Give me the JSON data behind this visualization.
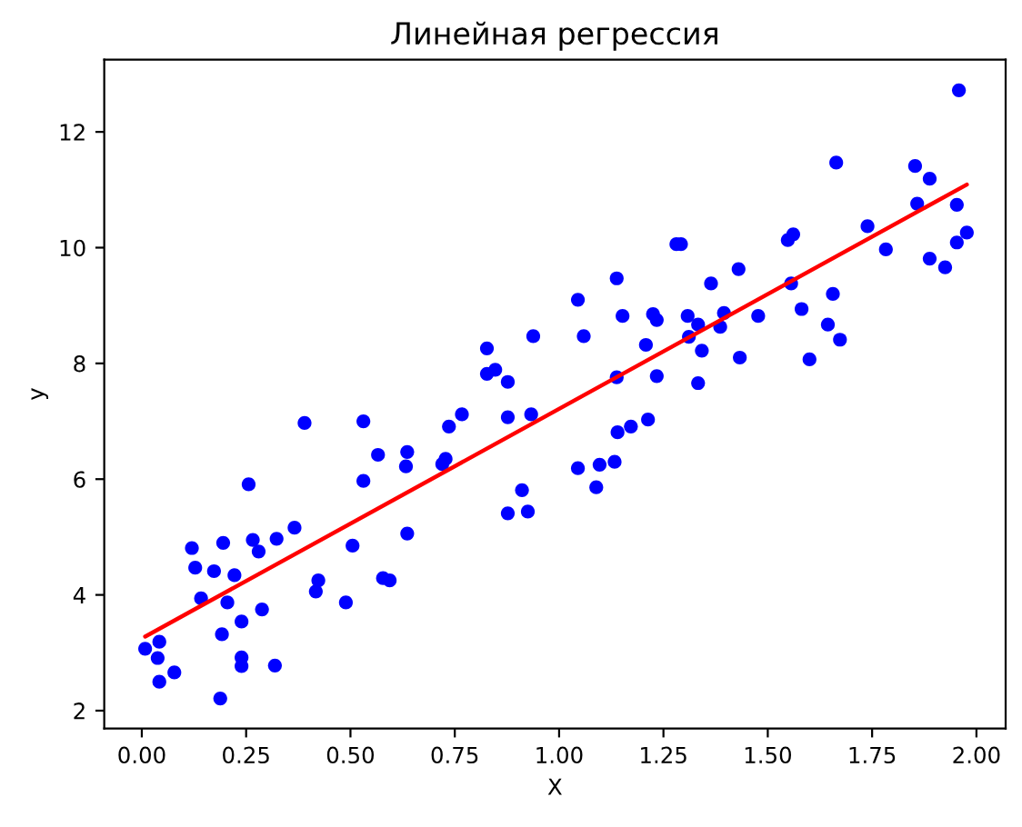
{
  "chart_data": {
    "type": "scatter",
    "title": "Линейная регрессия",
    "xlabel": "X",
    "ylabel": "y",
    "xlim": [
      -0.09,
      2.07
    ],
    "ylim": [
      1.69,
      13.25
    ],
    "xticks": [
      {
        "value": 0,
        "label": "0.00"
      },
      {
        "value": 0.25,
        "label": "0.25"
      },
      {
        "value": 0.5,
        "label": "0.50"
      },
      {
        "value": 0.75,
        "label": "0.75"
      },
      {
        "value": 1,
        "label": "1.00"
      },
      {
        "value": 1.25,
        "label": "1.25"
      },
      {
        "value": 1.5,
        "label": "1.50"
      },
      {
        "value": 1.75,
        "label": "1.75"
      },
      {
        "value": 2,
        "label": "2.00"
      }
    ],
    "yticks": [
      2,
      4,
      6,
      8,
      10,
      12
    ],
    "grid": false,
    "series": [
      {
        "color": "#0000ff",
        "marker": "circle",
        "x": [
          0.008,
          0.042,
          0.038,
          0.042,
          0.078,
          0.12,
          0.128,
          0.142,
          0.173,
          0.195,
          0.205,
          0.192,
          0.188,
          0.222,
          0.239,
          0.239,
          0.239,
          0.256,
          0.266,
          0.28,
          0.288,
          0.319,
          0.323,
          0.366,
          0.39,
          0.417,
          0.423,
          0.489,
          0.505,
          0.531,
          0.531,
          0.566,
          0.578,
          0.594,
          0.633,
          0.636,
          0.636,
          0.72,
          0.728,
          0.736,
          0.767,
          0.827,
          0.827,
          0.847,
          0.877,
          0.877,
          0.877,
          0.911,
          0.925,
          0.933,
          0.938,
          1.045,
          1.045,
          1.059,
          1.089,
          1.097,
          1.133,
          1.138,
          1.138,
          1.14,
          1.152,
          1.172,
          1.208,
          1.213,
          1.225,
          1.234,
          1.234,
          1.281,
          1.292,
          1.308,
          1.311,
          1.333,
          1.342,
          1.333,
          1.364,
          1.386,
          1.395,
          1.43,
          1.433,
          1.477,
          1.548,
          1.561,
          1.556,
          1.581,
          1.6,
          1.644,
          1.656,
          1.664,
          1.673,
          1.739,
          1.783,
          1.853,
          1.858,
          1.888,
          1.888,
          1.925,
          1.953,
          1.953,
          1.958,
          1.977
        ],
        "values": [
          3.07,
          3.19,
          2.91,
          2.5,
          2.66,
          4.81,
          4.47,
          3.94,
          4.41,
          4.9,
          3.87,
          3.32,
          2.21,
          4.34,
          3.54,
          2.92,
          2.77,
          5.91,
          4.95,
          4.75,
          3.75,
          2.78,
          4.97,
          5.16,
          6.97,
          4.06,
          4.25,
          3.87,
          4.85,
          7.0,
          5.97,
          6.42,
          4.29,
          4.25,
          6.22,
          6.47,
          5.06,
          6.26,
          6.35,
          6.91,
          7.12,
          8.26,
          7.82,
          7.89,
          7.68,
          7.07,
          5.41,
          5.81,
          5.44,
          7.12,
          8.47,
          9.1,
          6.19,
          8.47,
          5.86,
          6.25,
          6.3,
          9.47,
          7.76,
          6.81,
          8.82,
          6.91,
          8.32,
          7.03,
          8.85,
          8.75,
          7.78,
          10.06,
          10.06,
          8.82,
          8.46,
          8.67,
          8.22,
          7.66,
          9.38,
          8.63,
          8.87,
          9.63,
          8.1,
          8.82,
          10.13,
          10.23,
          9.38,
          8.94,
          8.07,
          8.67,
          9.2,
          11.47,
          8.41,
          10.37,
          9.97,
          11.41,
          10.76,
          11.19,
          9.81,
          9.66,
          10.74,
          10.09,
          12.72,
          10.26
        ]
      },
      {
        "type": "line",
        "color": "#ff0000",
        "line_style": "solid",
        "marker": "none",
        "x": [
          0.008,
          1.977
        ],
        "values": [
          3.28,
          11.09
        ]
      }
    ]
  }
}
